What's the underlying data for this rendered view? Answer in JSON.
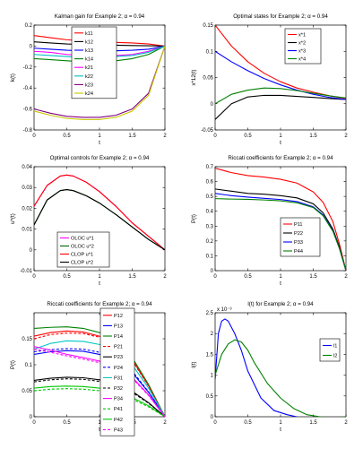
{
  "figure": {
    "layout": "3x2 grid of line plots"
  },
  "chart_data": [
    {
      "type": "line",
      "title": "Kalman gain for Example 2; α = 0.94",
      "xlabel": "t",
      "ylabel": "k(t)",
      "xlim": [
        0,
        2
      ],
      "ylim": [
        -0.8,
        0.2
      ],
      "xticks": [
        "0",
        "0.5",
        "1",
        "1.5",
        "2"
      ],
      "yticks": [
        "-0.8",
        "-0.6",
        "-0.4",
        "-0.2",
        "0",
        "0.2"
      ],
      "legend": "top-left, inside",
      "series": [
        {
          "name": "k11",
          "color": "#ff0000",
          "x": [
            0,
            0.25,
            0.5,
            0.75,
            1,
            1.25,
            1.5,
            1.75,
            2
          ],
          "y": [
            0.1,
            0.08,
            0.06,
            0.05,
            0.04,
            0.035,
            0.03,
            0.02,
            0.0
          ]
        },
        {
          "name": "k12",
          "color": "#000000",
          "x": [
            0,
            0.25,
            0.5,
            0.75,
            1,
            1.25,
            1.5,
            1.75,
            2
          ],
          "y": [
            0.04,
            0.03,
            0.02,
            0.015,
            0.01,
            0.008,
            0.005,
            0.003,
            0.0
          ]
        },
        {
          "name": "k13",
          "color": "#0000ff",
          "x": [
            0,
            0.25,
            0.5,
            0.75,
            1,
            1.25,
            1.5,
            1.75,
            2
          ],
          "y": [
            -0.02,
            -0.03,
            -0.04,
            -0.045,
            -0.05,
            -0.045,
            -0.04,
            -0.03,
            0.0
          ]
        },
        {
          "name": "k14",
          "color": "#008000",
          "x": [
            0,
            0.25,
            0.5,
            0.75,
            1,
            1.25,
            1.5,
            1.75,
            2
          ],
          "y": [
            -0.12,
            -0.13,
            -0.14,
            -0.15,
            -0.15,
            -0.14,
            -0.12,
            -0.08,
            0.0
          ]
        },
        {
          "name": "k21",
          "color": "#ff00ff",
          "x": [
            0,
            0.25,
            0.5,
            0.75,
            1,
            1.25,
            1.5,
            1.75,
            2
          ],
          "y": [
            -0.05,
            -0.06,
            -0.08,
            -0.09,
            -0.1,
            -0.09,
            -0.08,
            -0.05,
            0.0
          ]
        },
        {
          "name": "k22",
          "color": "#00c0c0",
          "x": [
            0,
            0.25,
            0.5,
            0.75,
            1,
            1.25,
            1.5,
            1.75,
            2
          ],
          "y": [
            -0.08,
            -0.09,
            -0.1,
            -0.11,
            -0.11,
            -0.1,
            -0.09,
            -0.06,
            0.0
          ]
        },
        {
          "name": "k23",
          "color": "#800080",
          "x": [
            0,
            0.25,
            0.5,
            0.75,
            1,
            1.25,
            1.5,
            1.75,
            2
          ],
          "y": [
            -0.6,
            -0.64,
            -0.67,
            -0.68,
            -0.68,
            -0.66,
            -0.6,
            -0.45,
            0.0
          ]
        },
        {
          "name": "k24",
          "color": "#c8c800",
          "x": [
            0,
            0.25,
            0.5,
            0.75,
            1,
            1.25,
            1.5,
            1.75,
            2
          ],
          "y": [
            -0.62,
            -0.66,
            -0.69,
            -0.7,
            -0.7,
            -0.68,
            -0.62,
            -0.47,
            0.0
          ]
        }
      ]
    },
    {
      "type": "line",
      "title": "Optimal states for Example 2; α = 0.94",
      "xlabel": "t",
      "ylabel": "x*12(t)",
      "xlim": [
        0,
        2
      ],
      "ylim": [
        -0.05,
        0.15
      ],
      "xticks": [
        "0",
        "0.5",
        "1",
        "1.5",
        "2"
      ],
      "yticks": [
        "-0.05",
        "0",
        "0.05",
        "0.1",
        "0.15"
      ],
      "legend": "top-right, inside",
      "series": [
        {
          "name": "x*1",
          "color": "#ff0000",
          "x": [
            0,
            0.25,
            0.5,
            0.75,
            1,
            1.25,
            1.5,
            1.75,
            2
          ],
          "y": [
            0.15,
            0.11,
            0.08,
            0.058,
            0.042,
            0.03,
            0.022,
            0.015,
            0.01
          ]
        },
        {
          "name": "x*2",
          "color": "#000000",
          "x": [
            0,
            0.25,
            0.5,
            0.75,
            1,
            1.25,
            1.5,
            1.75,
            2
          ],
          "y": [
            -0.03,
            0.0,
            0.013,
            0.016,
            0.016,
            0.014,
            0.012,
            0.01,
            0.008
          ]
        },
        {
          "name": "x*3",
          "color": "#0000ff",
          "x": [
            0,
            0.25,
            0.5,
            0.75,
            1,
            1.25,
            1.5,
            1.75,
            2
          ],
          "y": [
            0.1,
            0.08,
            0.063,
            0.048,
            0.036,
            0.026,
            0.018,
            0.012,
            0.008
          ]
        },
        {
          "name": "x*4",
          "color": "#008000",
          "x": [
            0,
            0.25,
            0.5,
            0.75,
            1,
            1.25,
            1.5,
            1.75,
            2
          ],
          "y": [
            0.0,
            0.018,
            0.026,
            0.03,
            0.029,
            0.025,
            0.02,
            0.015,
            0.011
          ]
        }
      ]
    },
    {
      "type": "line",
      "title": "Optimal controls for Example 2; α = 0.94",
      "xlabel": "t",
      "ylabel": "u*(t)",
      "xlim": [
        0,
        2
      ],
      "ylim": [
        -0.01,
        0.04
      ],
      "xticks": [
        "0",
        "0.5",
        "1",
        "1.5",
        "2"
      ],
      "yticks": [
        "-0.01",
        "0",
        "0.01",
        "0.02",
        "0.03",
        "0.04"
      ],
      "legend": "bottom-left, inside",
      "series": [
        {
          "name": "OLOC u*1",
          "color": "#ff00ff",
          "x": [
            0,
            0.2,
            0.4,
            0.5,
            0.6,
            0.8,
            1.0,
            1.25,
            1.5,
            1.75,
            2
          ],
          "y": [
            0.021,
            0.031,
            0.0355,
            0.036,
            0.0355,
            0.0325,
            0.028,
            0.021,
            0.013,
            0.0065,
            0.0
          ]
        },
        {
          "name": "OLOC u*2",
          "color": "#006400",
          "x": [
            0,
            0.2,
            0.4,
            0.5,
            0.6,
            0.8,
            1.0,
            1.25,
            1.5,
            1.75,
            2
          ],
          "y": [
            0.012,
            0.024,
            0.0285,
            0.029,
            0.0285,
            0.026,
            0.0225,
            0.017,
            0.011,
            0.005,
            0.0
          ]
        },
        {
          "name": "CLOP u*1",
          "color": "#ff0000",
          "x": [
            0,
            0.2,
            0.4,
            0.5,
            0.6,
            0.8,
            1.0,
            1.25,
            1.5,
            1.75,
            2
          ],
          "y": [
            0.021,
            0.031,
            0.0355,
            0.036,
            0.0355,
            0.0325,
            0.028,
            0.021,
            0.013,
            0.0065,
            0.0
          ]
        },
        {
          "name": "CLOP u*2",
          "color": "#000000",
          "x": [
            0,
            0.2,
            0.4,
            0.5,
            0.6,
            0.8,
            1.0,
            1.25,
            1.5,
            1.75,
            2
          ],
          "y": [
            0.012,
            0.024,
            0.0285,
            0.029,
            0.0285,
            0.026,
            0.0225,
            0.017,
            0.011,
            0.005,
            0.0
          ]
        }
      ]
    },
    {
      "type": "line",
      "title": "Riccati coefficients for Example 2; α = 0.94",
      "xlabel": "t",
      "ylabel": "P(t)",
      "xlim": [
        0,
        2
      ],
      "ylim": [
        0,
        0.7
      ],
      "xticks": [
        "0",
        "0.5",
        "1",
        "1.5",
        "2"
      ],
      "yticks": [
        "0",
        "0.1",
        "0.2",
        "0.3",
        "0.4",
        "0.5",
        "0.6",
        "0.7"
      ],
      "legend": "bottom-right, inside",
      "series": [
        {
          "name": "P11",
          "color": "#ff0000",
          "x": [
            0,
            0.25,
            0.5,
            0.75,
            1,
            1.25,
            1.5,
            1.65,
            1.8,
            1.9,
            2
          ],
          "y": [
            0.69,
            0.66,
            0.64,
            0.63,
            0.615,
            0.59,
            0.53,
            0.46,
            0.33,
            0.18,
            0.0
          ]
        },
        {
          "name": "P22",
          "color": "#000000",
          "x": [
            0,
            0.25,
            0.5,
            0.75,
            1,
            1.25,
            1.5,
            1.65,
            1.8,
            1.9,
            2
          ],
          "y": [
            0.55,
            0.535,
            0.52,
            0.515,
            0.505,
            0.49,
            0.45,
            0.39,
            0.28,
            0.16,
            0.0
          ]
        },
        {
          "name": "P33",
          "color": "#0000ff",
          "x": [
            0,
            0.25,
            0.5,
            0.75,
            1,
            1.25,
            1.5,
            1.65,
            1.8,
            1.9,
            2
          ],
          "y": [
            0.52,
            0.505,
            0.495,
            0.487,
            0.479,
            0.465,
            0.43,
            0.375,
            0.27,
            0.15,
            0.0
          ]
        },
        {
          "name": "P44",
          "color": "#008000",
          "x": [
            0,
            0.25,
            0.5,
            0.75,
            1,
            1.25,
            1.5,
            1.65,
            1.8,
            1.9,
            2
          ],
          "y": [
            0.485,
            0.482,
            0.48,
            0.476,
            0.47,
            0.457,
            0.425,
            0.37,
            0.265,
            0.15,
            0.0
          ]
        }
      ]
    },
    {
      "type": "line",
      "title": "Riccati coefficients for Example 2; α = 0.94",
      "xlabel": "t",
      "ylabel": "P(t)",
      "xlim": [
        0,
        2
      ],
      "ylim": [
        0,
        0.2
      ],
      "xticks": [
        "0",
        "0.5",
        "1",
        "1.5",
        "2"
      ],
      "yticks": [
        "0",
        "0.05",
        "0.1",
        "0.15"
      ],
      "legend": "top-right, inside",
      "series": [
        {
          "name": "P12",
          "color": "#ff0000",
          "dash": false,
          "x": [
            0,
            0.25,
            0.5,
            0.75,
            1,
            1.25,
            1.5,
            1.75,
            2
          ],
          "y": [
            0.155,
            0.162,
            0.165,
            0.163,
            0.155,
            0.14,
            0.11,
            0.06,
            0.0
          ]
        },
        {
          "name": "P13",
          "color": "#0000ff",
          "dash": false,
          "x": [
            0,
            0.25,
            0.5,
            0.75,
            1,
            1.25,
            1.5,
            1.75,
            2
          ],
          "y": [
            0.12,
            0.125,
            0.127,
            0.126,
            0.12,
            0.108,
            0.085,
            0.047,
            0.0
          ]
        },
        {
          "name": "P14",
          "color": "#008000",
          "dash": false,
          "x": [
            0,
            0.25,
            0.5,
            0.75,
            1,
            1.25,
            1.5,
            1.75,
            2
          ],
          "y": [
            0.17,
            0.172,
            0.173,
            0.17,
            0.162,
            0.146,
            0.114,
            0.062,
            0.0
          ]
        },
        {
          "name": "P21",
          "color": "#ff0000",
          "dash": true,
          "x": [
            0,
            0.25,
            0.5,
            0.75,
            1,
            1.25,
            1.5,
            1.75,
            2
          ],
          "y": [
            0.15,
            0.158,
            0.161,
            0.16,
            0.153,
            0.138,
            0.108,
            0.059,
            0.0
          ]
        },
        {
          "name": "P23",
          "color": "#000000",
          "dash": false,
          "x": [
            0,
            0.25,
            0.5,
            0.75,
            1,
            1.25,
            1.5,
            1.75,
            2
          ],
          "y": [
            0.07,
            0.074,
            0.076,
            0.075,
            0.071,
            0.063,
            0.049,
            0.027,
            0.0
          ]
        },
        {
          "name": "P24",
          "color": "#0000ff",
          "dash": true,
          "x": [
            0,
            0.25,
            0.5,
            0.75,
            1,
            1.25,
            1.5,
            1.75,
            2
          ],
          "y": [
            0.125,
            0.129,
            0.131,
            0.13,
            0.124,
            0.112,
            0.088,
            0.048,
            0.0
          ]
        },
        {
          "name": "P31",
          "color": "#00c8c8",
          "dash": false,
          "x": [
            0,
            0.25,
            0.5,
            0.75,
            1,
            1.25,
            1.5,
            1.75,
            2
          ],
          "y": [
            0.13,
            0.141,
            0.146,
            0.145,
            0.139,
            0.126,
            0.1,
            0.055,
            0.0
          ]
        },
        {
          "name": "P32",
          "color": "#000000",
          "dash": true,
          "x": [
            0,
            0.25,
            0.5,
            0.75,
            1,
            1.25,
            1.5,
            1.75,
            2
          ],
          "y": [
            0.067,
            0.071,
            0.073,
            0.072,
            0.068,
            0.06,
            0.047,
            0.026,
            0.0
          ]
        },
        {
          "name": "P34",
          "color": "#ff00ff",
          "dash": false,
          "x": [
            0,
            0.25,
            0.5,
            0.75,
            1,
            1.25,
            1.5,
            1.75,
            2
          ],
          "y": [
            0.135,
            0.128,
            0.12,
            0.114,
            0.107,
            0.096,
            0.076,
            0.042,
            0.0
          ]
        },
        {
          "name": "P41",
          "color": "#00c800",
          "dash": true,
          "x": [
            0,
            0.25,
            0.5,
            0.75,
            1,
            1.25,
            1.5,
            1.75,
            2
          ],
          "y": [
            0.05,
            0.053,
            0.054,
            0.053,
            0.05,
            0.044,
            0.034,
            0.019,
            0.0
          ]
        },
        {
          "name": "P42",
          "color": "#00c800",
          "dash": false,
          "x": [
            0,
            0.25,
            0.5,
            0.75,
            1,
            1.25,
            1.5,
            1.75,
            2
          ],
          "y": [
            0.055,
            0.058,
            0.059,
            0.058,
            0.055,
            0.048,
            0.037,
            0.021,
            0.0
          ]
        },
        {
          "name": "P43",
          "color": "#ff00ff",
          "dash": true,
          "x": [
            0,
            0.25,
            0.5,
            0.75,
            1,
            1.25,
            1.5,
            1.75,
            2
          ],
          "y": [
            0.13,
            0.124,
            0.117,
            0.111,
            0.104,
            0.093,
            0.074,
            0.041,
            0.0
          ]
        }
      ]
    },
    {
      "type": "line",
      "title": "l(t) for Example 2; α = 0.94",
      "xlabel": "t",
      "ylabel": "l(t)",
      "exponent_label": "x 10⁻³",
      "xlim": [
        0,
        2
      ],
      "ylim": [
        0,
        2.5
      ],
      "xticks": [
        "0",
        "0.5",
        "1",
        "1.5",
        "2"
      ],
      "yticks": [
        "0",
        "0.5",
        "1",
        "1.5",
        "2",
        "2.5"
      ],
      "legend": "right, inside",
      "series": [
        {
          "name": "l1",
          "color": "#0000ff",
          "x": [
            0,
            0.05,
            0.1,
            0.15,
            0.2,
            0.3,
            0.4,
            0.5,
            0.7,
            0.9,
            1.1,
            1.3,
            1.5,
            1.7,
            1.9,
            2
          ],
          "y": [
            0.9,
            2.0,
            2.3,
            2.35,
            2.3,
            2.0,
            1.6,
            1.1,
            0.45,
            0.15,
            0.05,
            -0.02,
            -0.05,
            -0.08,
            -0.03,
            0.0
          ]
        },
        {
          "name": "l2",
          "color": "#008000",
          "x": [
            0,
            0.05,
            0.1,
            0.2,
            0.3,
            0.4,
            0.5,
            0.6,
            0.8,
            1.0,
            1.2,
            1.4,
            1.6,
            1.8,
            2
          ],
          "y": [
            1.0,
            1.25,
            1.5,
            1.75,
            1.85,
            1.8,
            1.6,
            1.3,
            0.8,
            0.45,
            0.2,
            0.05,
            0.0,
            -0.02,
            0.0
          ]
        }
      ]
    }
  ]
}
